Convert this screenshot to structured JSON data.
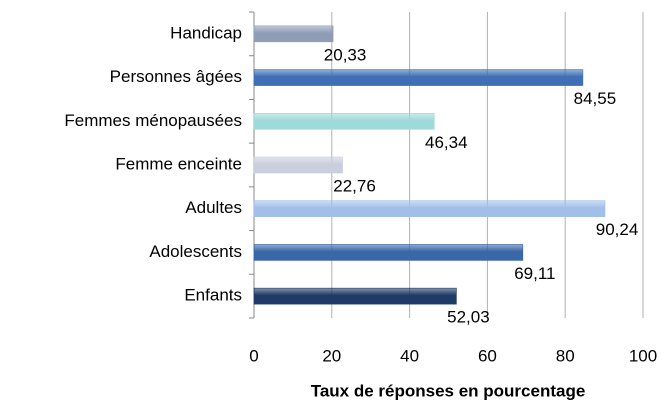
{
  "chart_data": {
    "type": "barh",
    "x_label": "Taux de réponses en pourcentage",
    "categories": [
      "Handicap",
      "Personnes âgées",
      "Femmes ménopausées",
      "Femme enceinte",
      "Adultes",
      "Adolescents",
      "Enfants"
    ],
    "values": [
      20.33,
      84.55,
      46.34,
      22.76,
      90.24,
      69.11,
      52.03
    ],
    "value_labels": [
      "20,33",
      "84,55",
      "46,34",
      "22,76",
      "90,24",
      "69,11",
      "52,03"
    ],
    "colors": [
      "#8e9cb6",
      "#3f6fb5",
      "#9fdada",
      "#c9cfdc",
      "#a2bfea",
      "#3a67a7",
      "#1f3a66"
    ],
    "xlim": [
      0,
      100
    ],
    "xticks": [
      0,
      20,
      40,
      60,
      80,
      100
    ],
    "grid": true
  }
}
